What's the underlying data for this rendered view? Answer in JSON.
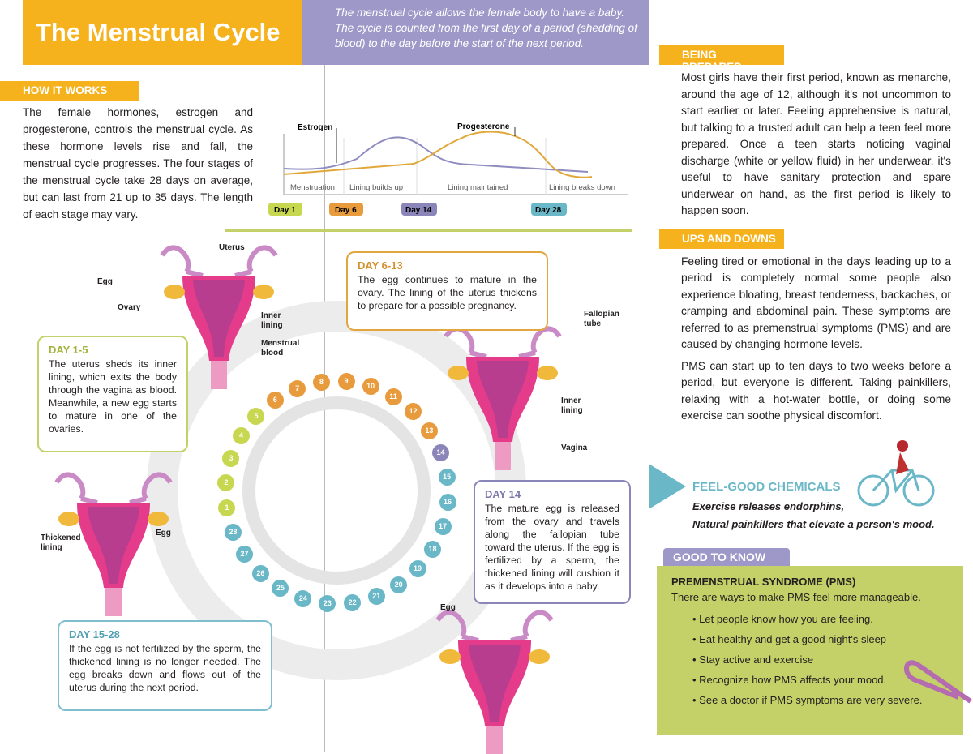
{
  "title": "The Menstrual Cycle",
  "intro": "The menstrual cycle allows the female body to have a baby. The cycle is counted from the first day of a period (shedding of blood) to the day before the start of the next period.",
  "how_it_works": {
    "heading": "HOW IT WORKS",
    "text": "The female hormones, estrogen and progesterone, controls the menstrual cycle. As these hormone levels rise and fall, the menstrual cycle progresses. The four stages of the menstrual cycle take 28 days on average, but can last from 21 up to 35 days. The length of each stage may vary."
  },
  "hormone_chart": {
    "estrogen": "Estrogen",
    "progesterone": "Progesterone",
    "phases": [
      "Menstruation",
      "Lining builds up",
      "Lining maintained",
      "Lining breaks down"
    ],
    "days": [
      "Day 1",
      "Day 6",
      "Day 14",
      "Day 28"
    ],
    "colors": {
      "estrogen": "#8f8cc0",
      "progesterone": "#e0a83a"
    }
  },
  "cycle": {
    "days": [
      "1",
      "2",
      "3",
      "4",
      "5",
      "6",
      "7",
      "8",
      "9",
      "10",
      "11",
      "12",
      "13",
      "14",
      "15",
      "16",
      "17",
      "18",
      "19",
      "20",
      "21",
      "22",
      "23",
      "24",
      "25",
      "26",
      "27",
      "28"
    ],
    "colors": {
      "days_1_5": "#c8d750",
      "days_6_13": "#e89b3d",
      "day_14": "#8a86ba",
      "days_15_28": "#6ab7c8"
    }
  },
  "labels": {
    "uterus": "Uterus",
    "egg": "Egg",
    "ovary": "Ovary",
    "inner_lining": "Inner lining",
    "menstrual_blood": "Menstrual blood",
    "fallopian_tube": "Fallopian tube",
    "inner_lining2": "Inner lining",
    "vagina": "Vagina",
    "thickened_lining": "Thickened lining",
    "egg2": "Egg",
    "egg3": "Egg"
  },
  "stages": [
    {
      "title": "DAY 1-5",
      "text": "The uterus sheds its inner lining, which exits the body through the vagina as blood. Meanwhile, a new egg starts to mature in one of the ovaries."
    },
    {
      "title": "DAY 6-13",
      "text": "The egg continues to mature in the ovary. The lining of the uterus thickens to prepare for a possible pregnancy."
    },
    {
      "title": "DAY 14",
      "text": "The mature egg is released from the ovary and travels along the fallopian tube toward the uterus. If the egg is fertilized by a sperm, the thickened lining will cushion it as it develops into a baby."
    },
    {
      "title": "DAY 15-28",
      "text": "If the egg is not fertilized by the sperm, the thickened lining is no longer needed. The egg breaks down and flows out of the uterus during the next period."
    }
  ],
  "being_prepared": {
    "heading": "BEING PREPARED",
    "text": "Most girls have their first period, known as menarche, around the age of 12, although it's not uncommon to start earlier or later. Feeling apprehensive is natural, but talking to a trusted adult can help a teen feel more prepared. Once a teen starts noticing vaginal discharge (white or yellow fluid) in her underwear, it's useful to have sanitary protection and spare underwear on hand, as the first period is likely to happen soon."
  },
  "ups_and_downs": {
    "heading": "UPS AND DOWNS",
    "p1": "Feeling tired or emotional in the days leading up to a period is completely normal some people also experience bloating, breast tenderness, backaches, or cramping and abdominal pain. These symptoms are referred to as premenstrual symptoms (PMS) and are caused by changing hormone levels.",
    "p2": "PMS can start up to ten days to two weeks before a period, but everyone is different. Taking painkillers, relaxing with a hot-water bottle, or doing some exercise can soothe physical discomfort."
  },
  "feel_good": {
    "heading": "FEEL-GOOD CHEMICALS",
    "line1": "Exercise releases endorphins,",
    "line2": "Natural painkillers that elevate a person's mood."
  },
  "good_to_know": {
    "heading": "GOOD TO KNOW",
    "subheading": "PREMENSTRUAL SYNDROME (PMS)",
    "intro": "There are ways to make PMS feel more manageable.",
    "items": [
      "• Let people know how you are feeling.",
      "• Eat healthy and get a good night's sleep",
      "• Stay active and exercise",
      "• Recognize how PMS affects your mood.",
      "• See a doctor if PMS symptoms are very severe."
    ]
  }
}
